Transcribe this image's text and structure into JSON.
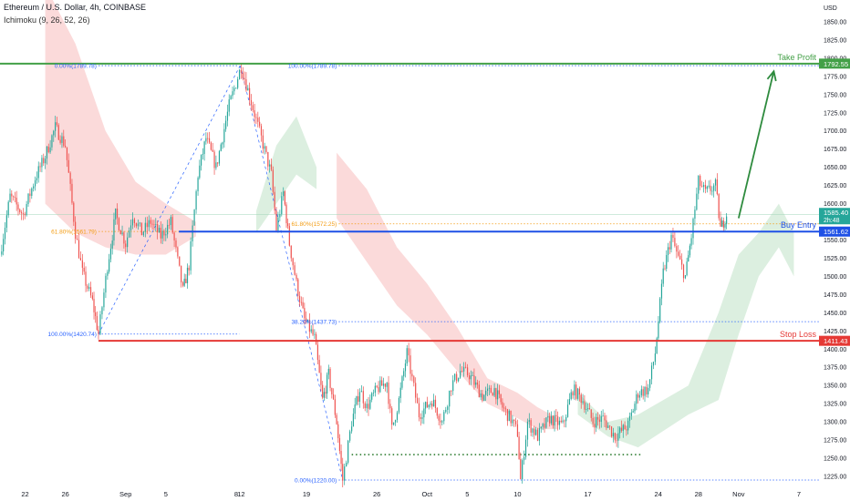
{
  "header": {
    "symbol_title": "Ethereum / U.S. Dollar, 4h, COINBASE",
    "indicator": "Ichimoku (9, 26, 52, 26)"
  },
  "colors": {
    "up": "#26a69a",
    "down": "#ef5350",
    "take_profit": "#43a047",
    "buy_entry": "#1e50e6",
    "stop_loss": "#e53935",
    "fib_blue": "#2962ff",
    "fib_orange": "#f39c12",
    "cloud_red": "#fbdada",
    "cloud_green": "#dcefe0",
    "support_dots": "#2e7d32",
    "arrow": "#2e8b3e"
  },
  "chart_data": {
    "type": "candlestick",
    "title": "Ethereum / U.S. Dollar, 4h, COINBASE",
    "y_axis_label": "USD",
    "ylim": [
      1210,
      1880
    ],
    "y_ticks": [
      1225,
      1250,
      1275,
      1300,
      1325,
      1350,
      1375,
      1400,
      1425,
      1450,
      1475,
      1500,
      1525,
      1550,
      1575,
      1600,
      1625,
      1650,
      1675,
      1700,
      1725,
      1750,
      1775,
      1800,
      1825,
      1850
    ],
    "y_tick_labels": [
      "1225.00",
      "1250.00",
      "1275.00",
      "1300.00",
      "1325.00",
      "1350.00",
      "1375.00",
      "1400.00",
      "1425.00",
      "1450.00",
      "1475.00",
      "1500.00",
      "1525.00",
      "1550.00",
      "1575.00",
      "1600.00",
      "1625.00",
      "1650.00",
      "1675.00",
      "1700.00",
      "1725.00",
      "1750.00",
      "1775.00",
      "1800.00",
      "1825.00",
      "1850.00"
    ],
    "x_ticks": [
      "22",
      "26",
      "Sep",
      "5",
      "8",
      "12",
      "19",
      "26",
      "Oct",
      "5",
      "10",
      "17",
      "24",
      "28",
      "Nov",
      "7"
    ],
    "x_tick_days": [
      -10,
      -6,
      0,
      4,
      11,
      11.5,
      18,
      25,
      30,
      34,
      39,
      46,
      53,
      57,
      61,
      67
    ],
    "x_domain_days": [
      -12.5,
      69
    ],
    "price_segments": [
      [
        -12.5,
        1530
      ],
      [
        -11.5,
        1610
      ],
      [
        -10.2,
        1585
      ],
      [
        -9,
        1635
      ],
      [
        -8,
        1665
      ],
      [
        -7,
        1705
      ],
      [
        -6,
        1680
      ],
      [
        -5,
        1560
      ],
      [
        -4.3,
        1505
      ],
      [
        -3.3,
        1465
      ],
      [
        -2.7,
        1421
      ],
      [
        -1.8,
        1515
      ],
      [
        -1,
        1585
      ],
      [
        0,
        1545
      ],
      [
        0.7,
        1585
      ],
      [
        1.6,
        1560
      ],
      [
        2.5,
        1575
      ],
      [
        3.5,
        1555
      ],
      [
        4.5,
        1575
      ],
      [
        5.7,
        1480
      ],
      [
        6.3,
        1515
      ],
      [
        7.2,
        1640
      ],
      [
        8,
        1690
      ],
      [
        9,
        1650
      ],
      [
        10.3,
        1735
      ],
      [
        11.5,
        1789
      ],
      [
        12.5,
        1740
      ],
      [
        13.5,
        1690
      ],
      [
        14.5,
        1640
      ],
      [
        15,
        1565
      ],
      [
        15.7,
        1615
      ],
      [
        16.3,
        1545
      ],
      [
        17,
        1490
      ],
      [
        17.8,
        1440
      ],
      [
        18.8,
        1415
      ],
      [
        19.6,
        1330
      ],
      [
        20.2,
        1365
      ],
      [
        21,
        1300
      ],
      [
        21.6,
        1220
      ],
      [
        22.5,
        1300
      ],
      [
        23.3,
        1345
      ],
      [
        24,
        1320
      ],
      [
        25,
        1345
      ],
      [
        26,
        1355
      ],
      [
        26.5,
        1290
      ],
      [
        27.2,
        1330
      ],
      [
        28,
        1395
      ],
      [
        29.2,
        1310
      ],
      [
        30.5,
        1330
      ],
      [
        31.5,
        1300
      ],
      [
        32.4,
        1350
      ],
      [
        33.3,
        1370
      ],
      [
        34.2,
        1365
      ],
      [
        35.5,
        1335
      ],
      [
        36.7,
        1345
      ],
      [
        37.5,
        1320
      ],
      [
        38.5,
        1300
      ],
      [
        39,
        1285
      ],
      [
        39.3,
        1220
      ],
      [
        40,
        1300
      ],
      [
        41,
        1280
      ],
      [
        42.2,
        1305
      ],
      [
        43.5,
        1295
      ],
      [
        44.5,
        1345
      ],
      [
        45.5,
        1330
      ],
      [
        46.5,
        1300
      ],
      [
        47.5,
        1305
      ],
      [
        48.7,
        1280
      ],
      [
        50,
        1295
      ],
      [
        51,
        1340
      ],
      [
        52,
        1345
      ],
      [
        52.7,
        1395
      ],
      [
        53.5,
        1505
      ],
      [
        54.3,
        1555
      ],
      [
        55,
        1525
      ],
      [
        55.7,
        1500
      ],
      [
        56.3,
        1555
      ],
      [
        57,
        1630
      ],
      [
        57.7,
        1615
      ],
      [
        58.7,
        1625
      ],
      [
        59.2,
        1565
      ],
      [
        59.8,
        1586
      ]
    ],
    "levels": [
      {
        "name": "Take Profit",
        "value": 1792.55,
        "label": "Take Profit",
        "price_label": "1792.55"
      },
      {
        "name": "Buy Entry",
        "value": 1561.62,
        "label": "Buy Entry",
        "price_label": "1561.62"
      },
      {
        "name": "Stop Loss",
        "value": 1411.43,
        "label": "Stop Loss",
        "price_label": "1411.43"
      }
    ],
    "current_price": {
      "value": 1585.4,
      "label": "1585.40",
      "countdown": "2h:48"
    },
    "fib_left": [
      {
        "value": 1789.78,
        "label": "0.00%(1789.78)"
      },
      {
        "value": 1561.79,
        "label": "61.80%(1561.79)"
      },
      {
        "value": 1420.74,
        "label": "100.00%(1420.74)"
      }
    ],
    "fib_right": [
      {
        "value": 1789.78,
        "label": "100.00%(1789.78)"
      },
      {
        "value": 1572.25,
        "label": "61.80%(1572.25)"
      },
      {
        "value": 1437.73,
        "label": "38.20%(1437.73)"
      },
      {
        "value": 1220.0,
        "label": "0.00%(1220.00)"
      }
    ],
    "support_level": {
      "value": 1255
    },
    "projection_arrow": {
      "from": [
        61,
        1580
      ],
      "to": [
        64.5,
        1782
      ]
    },
    "cloud_red": [
      [
        -8,
        1900,
        1600
      ],
      [
        -5,
        1820,
        1560
      ],
      [
        -2,
        1700,
        1540
      ],
      [
        1,
        1630,
        1530
      ],
      [
        4,
        1600,
        1530
      ],
      [
        7,
        1575,
        1555
      ],
      [
        21,
        1670,
        1580
      ],
      [
        24,
        1620,
        1520
      ],
      [
        27,
        1540,
        1460
      ],
      [
        30,
        1490,
        1420
      ],
      [
        33,
        1430,
        1370
      ],
      [
        36,
        1360,
        1325
      ],
      [
        39,
        1340,
        1305
      ],
      [
        41,
        1320,
        1290
      ],
      [
        43,
        1305,
        1290
      ]
    ],
    "cloud_green": [
      [
        13,
        1590,
        1560
      ],
      [
        15,
        1680,
        1600
      ],
      [
        17,
        1720,
        1640
      ],
      [
        19,
        1650,
        1620
      ],
      [
        45,
        1340,
        1310
      ],
      [
        48,
        1300,
        1280
      ],
      [
        51,
        1310,
        1265
      ],
      [
        56,
        1350,
        1310
      ],
      [
        59,
        1450,
        1330
      ],
      [
        61,
        1530,
        1420
      ],
      [
        63,
        1560,
        1500
      ],
      [
        65,
        1600,
        1540
      ],
      [
        66.5,
        1560,
        1500
      ]
    ]
  }
}
